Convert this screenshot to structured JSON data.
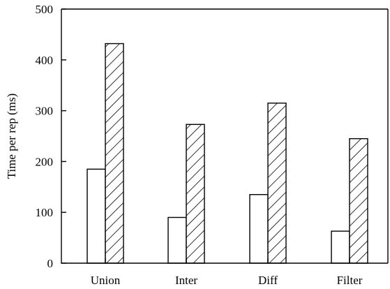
{
  "chart_data": {
    "type": "bar",
    "title": "",
    "xlabel": "",
    "ylabel": "Time per rep (ms)",
    "ylim": [
      0,
      500
    ],
    "yticks": [
      0,
      100,
      200,
      300,
      400,
      500
    ],
    "categories": [
      "Union",
      "Inter",
      "Diff",
      "Filter"
    ],
    "grid": false,
    "legend": "none",
    "series": [
      {
        "values": [
          185,
          90,
          135,
          63
        ],
        "fill": "#ffffff",
        "pattern": "none"
      },
      {
        "values": [
          432,
          273,
          315,
          245
        ],
        "fill": "#ffffff",
        "pattern": "diagonal-hatch"
      }
    ],
    "colors": {
      "stroke": "#000000",
      "background": "#ffffff"
    }
  }
}
